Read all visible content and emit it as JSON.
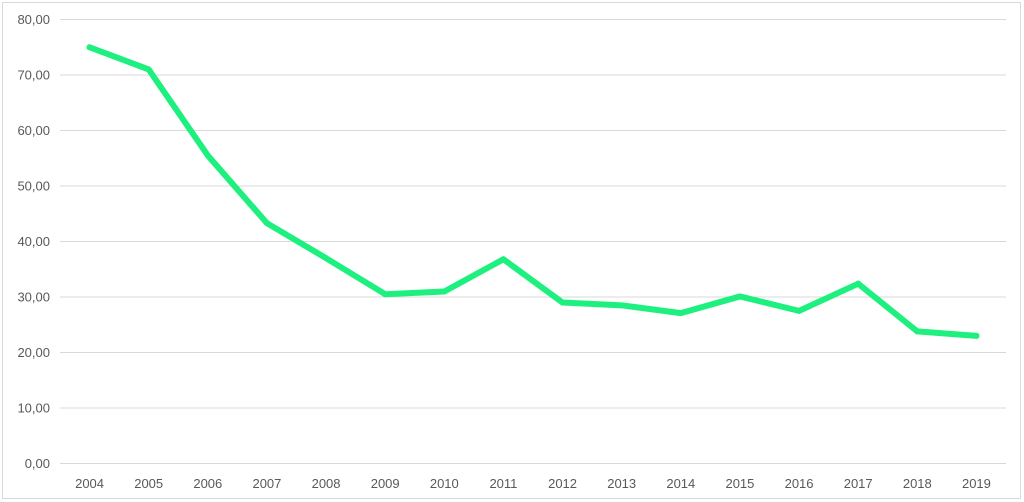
{
  "chart_data": {
    "type": "line",
    "title": "",
    "xlabel": "",
    "ylabel": "",
    "categories": [
      "2004",
      "2005",
      "2006",
      "2007",
      "2008",
      "2009",
      "2010",
      "2011",
      "2012",
      "2013",
      "2014",
      "2015",
      "2016",
      "2017",
      "2018",
      "2019"
    ],
    "series": [
      {
        "values": [
          75.0,
          71.0,
          55.5,
          43.3,
          37.0,
          30.5,
          31.0,
          36.8,
          29.0,
          28.5,
          27.1,
          30.1,
          27.5,
          32.4,
          23.8,
          23.0
        ],
        "color": "#1ef07f"
      }
    ],
    "ylim": [
      0,
      80
    ],
    "yticks": [
      "0,00",
      "10,00",
      "20,00",
      "30,00",
      "40,00",
      "50,00",
      "60,00",
      "70,00",
      "80,00"
    ],
    "grid": true,
    "legend": "none",
    "colors": {
      "gridline": "#d9d9d9",
      "tick_text": "#595959",
      "frame": "#d9d9d9"
    }
  }
}
